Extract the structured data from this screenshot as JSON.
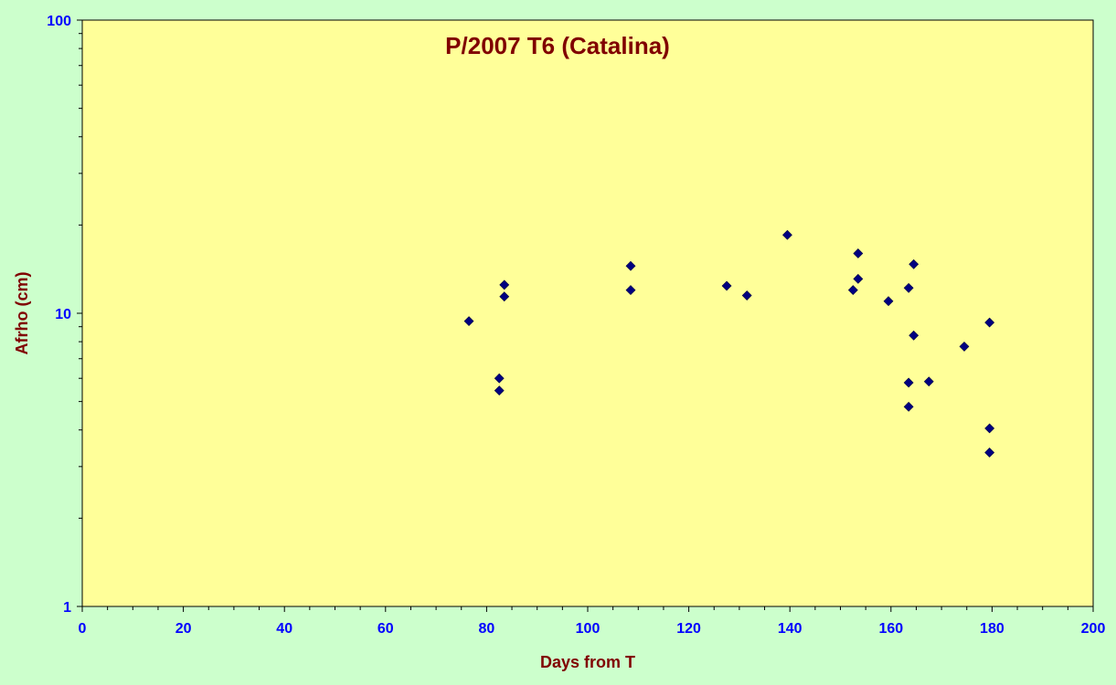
{
  "chart_data": {
    "type": "scatter",
    "title": "P/2007 T6 (Catalina)",
    "xlabel": "Days from T",
    "ylabel": "Afrho (cm)",
    "x_scale": "linear",
    "y_scale": "log",
    "xlim": [
      0,
      200
    ],
    "ylim": [
      1,
      100
    ],
    "x_ticks": [
      0,
      20,
      40,
      60,
      80,
      100,
      120,
      140,
      160,
      180,
      200
    ],
    "y_ticks": [
      1,
      10,
      100
    ],
    "grid": false,
    "legend": "none",
    "series": [
      {
        "marker": "diamond",
        "color": "#000080",
        "points": [
          {
            "x": 76.5,
            "y": 9.4
          },
          {
            "x": 82.5,
            "y": 6.0
          },
          {
            "x": 82.5,
            "y": 5.45
          },
          {
            "x": 83.5,
            "y": 12.5
          },
          {
            "x": 83.5,
            "y": 11.4
          },
          {
            "x": 108.5,
            "y": 14.5
          },
          {
            "x": 108.5,
            "y": 12.0
          },
          {
            "x": 127.5,
            "y": 12.4
          },
          {
            "x": 131.5,
            "y": 11.5
          },
          {
            "x": 139.5,
            "y": 18.5
          },
          {
            "x": 152.5,
            "y": 12.0
          },
          {
            "x": 153.5,
            "y": 16.0
          },
          {
            "x": 153.5,
            "y": 13.1
          },
          {
            "x": 159.5,
            "y": 11.0
          },
          {
            "x": 163.5,
            "y": 12.2
          },
          {
            "x": 163.5,
            "y": 5.8
          },
          {
            "x": 163.5,
            "y": 4.8
          },
          {
            "x": 164.5,
            "y": 14.7
          },
          {
            "x": 164.5,
            "y": 8.4
          },
          {
            "x": 167.5,
            "y": 5.85
          },
          {
            "x": 174.5,
            "y": 7.7
          },
          {
            "x": 179.5,
            "y": 9.3
          },
          {
            "x": 179.5,
            "y": 4.05
          },
          {
            "x": 179.5,
            "y": 3.35
          }
        ]
      }
    ]
  },
  "colors": {
    "background": "#ccffcc",
    "plot_area": "#ffff99",
    "title": "#800000",
    "axis_label": "#800000",
    "tick_label": "#0000ff",
    "marker": "#000080"
  }
}
